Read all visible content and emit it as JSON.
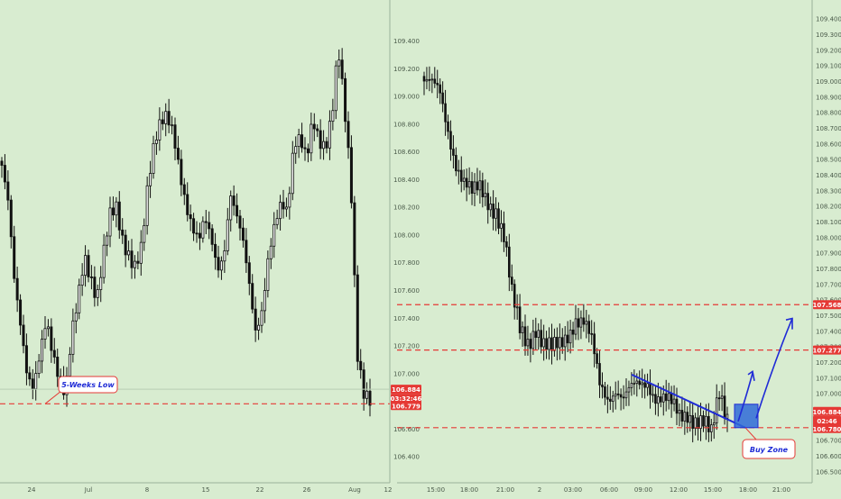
{
  "colors": {
    "background": "#d8ecd0",
    "candle": "#111111",
    "level_line": "#e53935",
    "price_badge": "#e53935",
    "trendline": "#1f2bd6",
    "buy_zone_fill": "#2f6bd8",
    "annotation_text": "#1f2bd6"
  },
  "chart_data": [
    {
      "type": "candlestick",
      "panel": "left",
      "xlabels": [
        "24",
        "Jul",
        "8",
        "15",
        "22",
        "26",
        "Aug",
        "12"
      ],
      "yticks": [
        "106.400",
        "106.600",
        "106.800",
        "107.000",
        "107.200",
        "107.400",
        "107.600",
        "107.800",
        "108.000",
        "108.200",
        "108.400",
        "108.600",
        "108.800",
        "109.000",
        "109.200",
        "109.400"
      ],
      "ylim": [
        106.3,
        109.55
      ],
      "horizontal_levels": [
        106.779
      ],
      "price_badges": [
        "106.884",
        "03:32:46",
        "106.779"
      ],
      "annotation": "5-Weeks Low",
      "approx_close_path": [
        108.5,
        108.2,
        107.6,
        107.3,
        107.0,
        106.95,
        107.2,
        107.4,
        107.1,
        106.9,
        106.8,
        107.3,
        107.6,
        107.9,
        107.7,
        107.5,
        107.8,
        108.1,
        108.2,
        108.0,
        107.9,
        107.8,
        107.9,
        108.3,
        108.6,
        108.8,
        108.9,
        108.8,
        108.5,
        108.2,
        108.0,
        107.9,
        108.1,
        108.0,
        107.8,
        107.9,
        108.3,
        108.1,
        107.9,
        107.6,
        107.3,
        107.5,
        107.9,
        108.1,
        108.2,
        108.1,
        108.6,
        108.7,
        108.6,
        108.9,
        108.7,
        108.6,
        108.8,
        109.3,
        108.9,
        108.4,
        107.2,
        106.9,
        106.8
      ]
    },
    {
      "type": "candlestick",
      "panel": "right",
      "xlabels": [
        "15:00",
        "18:00",
        "21:00",
        "2",
        "03:00",
        "06:00",
        "09:00",
        "12:00",
        "15:00",
        "18:00",
        "21:00"
      ],
      "yticks": [
        "106.500",
        "106.600",
        "106.700",
        "106.800",
        "106.900",
        "107.000",
        "107.100",
        "107.200",
        "107.300",
        "107.400",
        "107.500",
        "107.600",
        "107.700",
        "107.800",
        "107.900",
        "108.000",
        "108.100",
        "108.200",
        "108.300",
        "108.400",
        "108.500",
        "108.600",
        "108.700",
        "108.800",
        "108.900",
        "109.000",
        "109.100",
        "109.200",
        "109.300",
        "109.400"
      ],
      "ylim": [
        106.45,
        109.45
      ],
      "horizontal_levels": [
        107.568,
        107.277,
        106.78
      ],
      "price_badges": [
        "107.568",
        "107.277",
        "106.884",
        "02:46",
        "106.780"
      ],
      "annotation": "Buy Zone",
      "approx_close_path": [
        109.0,
        108.95,
        108.9,
        108.7,
        108.5,
        108.35,
        108.25,
        108.3,
        108.25,
        108.2,
        108.0,
        107.6,
        107.4,
        107.35,
        107.45,
        107.3,
        107.25,
        107.3,
        107.4,
        107.5,
        107.45,
        107.3,
        107.05,
        107.0,
        107.05,
        106.95,
        107.0,
        107.05,
        107.1,
        107.0,
        106.95,
        106.9,
        106.85,
        106.9,
        106.85,
        106.8,
        106.7,
        107.0,
        106.88
      ]
    }
  ]
}
